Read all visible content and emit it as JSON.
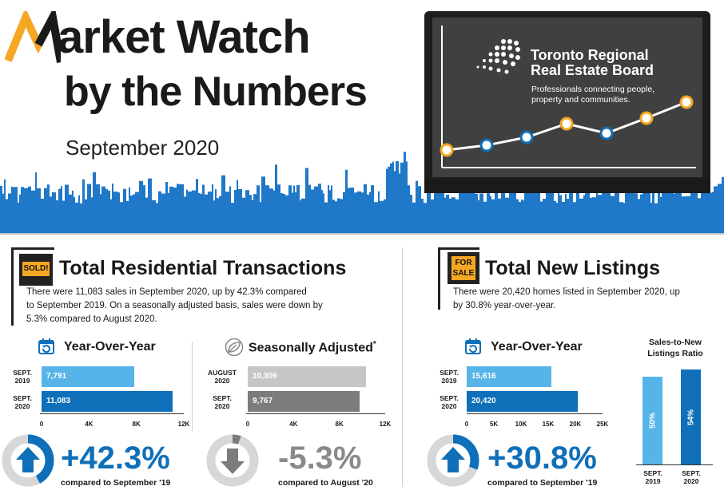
{
  "header": {
    "title_line1": "arket Watch",
    "title_line2": "by the Numbers",
    "month": "September 2020",
    "org_name_line1": "Toronto Regional",
    "org_name_line2": "Real Estate Board",
    "tagline_line1": "Professionals connecting people,",
    "tagline_line2": "property and communities."
  },
  "colors": {
    "blue_dark": "#0f6fb8",
    "blue_light": "#57b4e8",
    "orange": "#f5a623",
    "gray_light": "#c6c6c6",
    "gray_dark": "#7c7c7c"
  },
  "left_section": {
    "sign_text": "SOLD!",
    "title": "Total Residential Transactions",
    "desc_line1": "There were 11,083 sales in September 2020, up by 42.3% compared",
    "desc_line2": "to September 2019. On a seasonally adjusted basis, sales were down by",
    "desc_line3": "5.3% compared to August 2020.",
    "yoy": {
      "title": "Year-Over-Year",
      "rows": [
        {
          "label_line1": "SEPT.",
          "label_line2": "2019",
          "value_text": "7,791",
          "value": 7791
        },
        {
          "label_line1": "SEPT.",
          "label_line2": "2020",
          "value_text": "11,083",
          "value": 11083
        }
      ],
      "ticks": [
        "0",
        "4K",
        "8K",
        "12K"
      ],
      "max": 12000,
      "change": "+42.3%",
      "change_fraction": 0.423,
      "compare": "compared to September '19"
    },
    "sa": {
      "title": "Seasonally Adjusted",
      "asterisk": "*",
      "rows": [
        {
          "label_line1": "AUGUST",
          "label_line2": "2020",
          "value_text": "10,309",
          "value": 10309
        },
        {
          "label_line1": "SEPT.",
          "label_line2": "2020",
          "value_text": "9,767",
          "value": 9767
        }
      ],
      "ticks": [
        "0",
        "4K",
        "8K",
        "12K"
      ],
      "max": 12000,
      "change": "-5.3%",
      "change_fraction": 0.053,
      "compare": "compared to August '20"
    }
  },
  "right_section": {
    "sign_text_line1": "FOR",
    "sign_text_line2": "SALE",
    "title": "Total New Listings",
    "desc_line1": "There were 20,420 homes listed in September 2020, up",
    "desc_line2": "by 30.8% year-over-year.",
    "yoy": {
      "title": "Year-Over-Year",
      "rows": [
        {
          "label_line1": "SEPT.",
          "label_line2": "2019",
          "value_text": "15,616",
          "value": 15616
        },
        {
          "label_line1": "SEPT.",
          "label_line2": "2020",
          "value_text": "20,420",
          "value": 20420
        }
      ],
      "ticks": [
        "0",
        "5K",
        "10K",
        "15K",
        "20K",
        "25K"
      ],
      "max": 25000,
      "change": "+30.8%",
      "change_fraction": 0.308,
      "compare": "compared to September '19"
    },
    "ratio": {
      "title_line1": "Sales-to-New",
      "title_line2": "Listings Ratio",
      "bars": [
        {
          "label_line1": "SEPT.",
          "label_line2": "2019",
          "value_text": "50%",
          "value": 50
        },
        {
          "label_line1": "SEPT.",
          "label_line2": "2020",
          "value_text": "54%",
          "value": 54
        }
      ]
    }
  }
}
